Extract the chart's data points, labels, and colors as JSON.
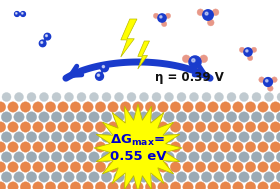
{
  "fig_width": 2.8,
  "fig_height": 1.89,
  "dpi": 100,
  "bg_color": "#ffffff",
  "orange_c": "#E8864A",
  "gray_c": "#9BAAB5",
  "lgray_c": "#C0CAD0",
  "n2_color": "#1A3BCC",
  "nh3_n_color": "#1A3BCC",
  "nh3_h_color": "#E89888",
  "arrow_color": "#1A3BCC",
  "lightning_color": "#FFFF00",
  "lightning_edge": "#BBBB00",
  "starburst_color": "#FFFF00",
  "starburst_edge": "#BBBB00",
  "eta_text": "η = 0.39 V",
  "text_color_blue": "#0000CC",
  "text_color_dark": "#111111"
}
